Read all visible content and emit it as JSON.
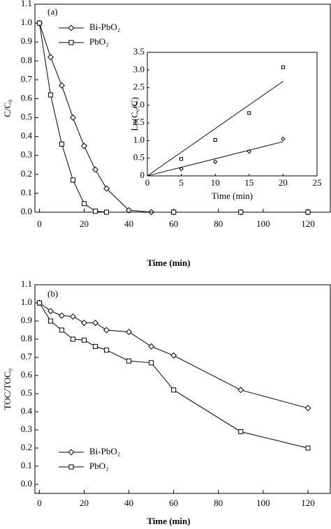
{
  "chart_data": [
    {
      "type": "line",
      "panel_label": "(a)",
      "x_label": "Time (min)",
      "y_label": "C/C₀",
      "xlim": [
        -2,
        130
      ],
      "ylim": [
        0,
        1.1
      ],
      "xticks": [
        0,
        20,
        40,
        60,
        80,
        100,
        120
      ],
      "yticks": [
        {
          "value": 0,
          "label": "0.0"
        },
        0.1,
        0.2,
        0.3,
        0.4,
        0.5,
        0.6,
        0.7,
        0.8,
        0.9,
        {
          "value": 1,
          "label": "1.0"
        },
        1.1
      ],
      "legend": "upper left",
      "series": [
        {
          "name": "Bi-PbO₂",
          "color": "#000000",
          "marker": "diamond",
          "x": [
            0,
            5,
            10,
            15,
            20,
            25,
            30,
            40,
            50,
            60,
            90,
            120
          ],
          "values": [
            1.0,
            0.82,
            0.67,
            0.5,
            0.35,
            0.225,
            0.125,
            0.01,
            0,
            0,
            0,
            0
          ]
        },
        {
          "name": "PbO₂",
          "color": "#000000",
          "marker": "square",
          "x": [
            0,
            5,
            10,
            15,
            20,
            25,
            30,
            60,
            90,
            120
          ],
          "values": [
            1.0,
            0.62,
            0.36,
            0.17,
            0.045,
            0.005,
            0,
            0,
            0,
            0
          ]
        }
      ]
    },
    {
      "type": "scatter",
      "x_label": "Time (min)",
      "y_label": "Ln(C₀/C)",
      "xlim": [
        0,
        25
      ],
      "ylim": [
        0,
        3.5
      ],
      "xticks": [
        0,
        5,
        10,
        15,
        20,
        25
      ],
      "yticks": [
        0,
        0.5,
        {
          "value": 1,
          "label": "1.0"
        },
        1.5,
        {
          "value": 2,
          "label": "2.0"
        },
        2.5,
        {
          "value": 3,
          "label": "3.0"
        },
        3.5
      ],
      "series": [
        {
          "color": "#000000",
          "marker": "square",
          "x": [
            5,
            10,
            15,
            20
          ],
          "values": [
            0.48,
            1.02,
            1.78,
            3.08
          ]
        },
        {
          "color": "#000000",
          "marker": "diamond",
          "x": [
            5,
            10,
            15,
            20
          ],
          "values": [
            0.2,
            0.4,
            0.69,
            1.05
          ]
        }
      ],
      "fits": [
        {
          "color": "#000000",
          "x": [
            0,
            20
          ],
          "values": [
            0,
            2.68
          ]
        },
        {
          "color": "#000000",
          "x": [
            0,
            20
          ],
          "values": [
            0,
            0.97
          ]
        }
      ]
    },
    {
      "type": "line",
      "panel_label": "(b)",
      "x_label": "Time (min)",
      "y_label": "TOC/TOC₀",
      "xlim": [
        -2,
        130
      ],
      "ylim": [
        -0.05,
        1.1
      ],
      "xticks": [
        0,
        20,
        40,
        60,
        80,
        100,
        120
      ],
      "yticks": [
        {
          "value": 0,
          "label": "0.0"
        },
        0.1,
        0.2,
        0.3,
        0.4,
        0.5,
        0.6,
        0.7,
        0.8,
        0.9,
        {
          "value": 1,
          "label": "1.0"
        },
        1.1
      ],
      "legend": "lower left",
      "series": [
        {
          "name": "Bi-PbO₂",
          "color": "#000000",
          "marker": "diamond",
          "x": [
            0,
            5,
            10,
            15,
            20,
            25,
            30,
            40,
            50,
            60,
            90,
            120
          ],
          "values": [
            1.0,
            0.955,
            0.93,
            0.925,
            0.89,
            0.89,
            0.85,
            0.84,
            0.76,
            0.71,
            0.52,
            0.42
          ]
        },
        {
          "name": "PbO₂",
          "color": "#000000",
          "marker": "square",
          "x": [
            0,
            5,
            10,
            15,
            20,
            25,
            30,
            40,
            50,
            60,
            90,
            120
          ],
          "values": [
            1.0,
            0.9,
            0.85,
            0.8,
            0.795,
            0.76,
            0.74,
            0.68,
            0.67,
            0.52,
            0.29,
            0.2
          ]
        }
      ]
    }
  ]
}
